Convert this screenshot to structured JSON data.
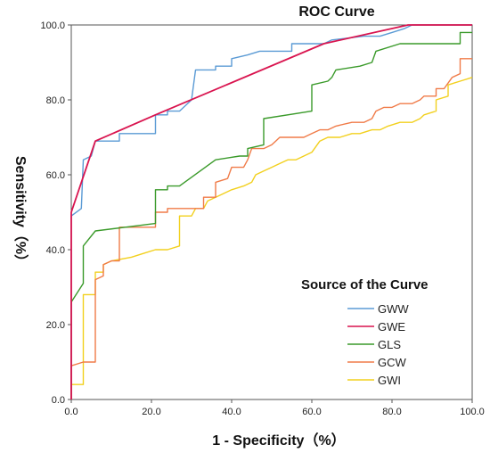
{
  "chart_data": {
    "type": "line",
    "title": "ROC Curve",
    "xlabel": "1 - Specificity（%）",
    "ylabel": "Sensitivity（%）",
    "xlim": [
      0,
      100
    ],
    "ylim": [
      0,
      100
    ],
    "xticks": [
      "0.0",
      "20.0",
      "40.0",
      "60.0",
      "80.0",
      "100.0"
    ],
    "yticks": [
      "0.0",
      "20.0",
      "40.0",
      "60.0",
      "80.0",
      "100.0"
    ],
    "grid": false,
    "legend": {
      "title": "Source of the Curve",
      "position": "bottom-right"
    },
    "series": [
      {
        "name": "GWW",
        "color": "#5b9bd5",
        "points": [
          [
            0,
            0
          ],
          [
            0,
            49
          ],
          [
            2.5,
            51
          ],
          [
            3,
            64
          ],
          [
            5,
            65
          ],
          [
            6,
            69
          ],
          [
            12,
            69
          ],
          [
            12,
            71
          ],
          [
            21,
            71
          ],
          [
            21,
            76
          ],
          [
            24,
            76
          ],
          [
            24,
            77
          ],
          [
            27,
            77
          ],
          [
            30,
            80
          ],
          [
            31,
            88
          ],
          [
            36,
            88
          ],
          [
            36,
            89
          ],
          [
            40,
            89
          ],
          [
            40,
            91
          ],
          [
            44,
            92
          ],
          [
            47,
            93
          ],
          [
            55,
            93
          ],
          [
            55,
            95
          ],
          [
            63,
            95
          ],
          [
            65,
            96
          ],
          [
            73,
            97
          ],
          [
            77,
            97
          ],
          [
            80,
            98
          ],
          [
            83,
            99
          ],
          [
            85,
            100
          ],
          [
            100,
            100
          ]
        ]
      },
      {
        "name": "GWE",
        "color": "#d9144f",
        "points": [
          [
            0,
            0
          ],
          [
            0,
            50
          ],
          [
            6,
            69
          ],
          [
            21,
            76
          ],
          [
            63,
            95
          ],
          [
            84,
            100
          ],
          [
            100,
            100
          ]
        ]
      },
      {
        "name": "GLS",
        "color": "#3a9a2a",
        "points": [
          [
            0,
            0
          ],
          [
            0,
            26
          ],
          [
            3,
            31
          ],
          [
            3,
            41
          ],
          [
            6,
            45
          ],
          [
            21,
            47
          ],
          [
            21,
            56
          ],
          [
            24,
            56
          ],
          [
            24,
            57
          ],
          [
            27,
            57
          ],
          [
            36,
            64
          ],
          [
            42,
            65
          ],
          [
            44,
            65
          ],
          [
            44,
            67
          ],
          [
            48,
            68
          ],
          [
            48,
            75
          ],
          [
            60,
            77
          ],
          [
            60,
            84
          ],
          [
            64,
            85
          ],
          [
            65,
            86
          ],
          [
            66,
            88
          ],
          [
            72,
            89
          ],
          [
            75,
            90
          ],
          [
            76,
            93
          ],
          [
            82,
            95
          ],
          [
            97,
            95
          ],
          [
            97,
            98
          ],
          [
            100,
            98
          ]
        ]
      },
      {
        "name": "GCW",
        "color": "#f07b48",
        "points": [
          [
            0,
            0
          ],
          [
            0,
            9
          ],
          [
            3,
            10
          ],
          [
            6,
            10
          ],
          [
            6,
            32
          ],
          [
            8,
            33
          ],
          [
            8,
            36
          ],
          [
            10,
            37
          ],
          [
            12,
            37
          ],
          [
            12,
            46
          ],
          [
            21,
            46
          ],
          [
            21,
            50
          ],
          [
            24,
            50
          ],
          [
            24,
            51
          ],
          [
            33,
            51
          ],
          [
            33,
            54
          ],
          [
            36,
            54
          ],
          [
            36,
            58
          ],
          [
            39,
            59
          ],
          [
            40,
            62
          ],
          [
            43,
            62
          ],
          [
            44,
            64
          ],
          [
            45,
            67
          ],
          [
            48,
            67
          ],
          [
            50,
            68
          ],
          [
            51,
            69
          ],
          [
            52,
            70
          ],
          [
            58,
            70
          ],
          [
            60,
            71
          ],
          [
            62,
            72
          ],
          [
            64,
            72
          ],
          [
            66,
            73
          ],
          [
            70,
            74
          ],
          [
            73,
            74
          ],
          [
            75,
            75
          ],
          [
            76,
            77
          ],
          [
            78,
            78
          ],
          [
            80,
            78
          ],
          [
            82,
            79
          ],
          [
            85,
            79
          ],
          [
            87,
            80
          ],
          [
            88,
            81
          ],
          [
            91,
            81
          ],
          [
            91,
            83
          ],
          [
            93,
            83
          ],
          [
            95,
            86
          ],
          [
            97,
            87
          ],
          [
            97,
            91
          ],
          [
            100,
            91
          ]
        ]
      },
      {
        "name": "GWI",
        "color": "#f2d01e",
        "points": [
          [
            0,
            0
          ],
          [
            0,
            4
          ],
          [
            3,
            4
          ],
          [
            3,
            28
          ],
          [
            6,
            28
          ],
          [
            6,
            34
          ],
          [
            8,
            34
          ],
          [
            8,
            36
          ],
          [
            10,
            37
          ],
          [
            15,
            38
          ],
          [
            18,
            39
          ],
          [
            21,
            40
          ],
          [
            24,
            40
          ],
          [
            27,
            41
          ],
          [
            27,
            49
          ],
          [
            30,
            49
          ],
          [
            31,
            51
          ],
          [
            33,
            51
          ],
          [
            34,
            53
          ],
          [
            36,
            54
          ],
          [
            38,
            55
          ],
          [
            40,
            56
          ],
          [
            43,
            57
          ],
          [
            45,
            58
          ],
          [
            46,
            60
          ],
          [
            48,
            61
          ],
          [
            50,
            62
          ],
          [
            52,
            63
          ],
          [
            54,
            64
          ],
          [
            56,
            64
          ],
          [
            58,
            65
          ],
          [
            60,
            66
          ],
          [
            62,
            69
          ],
          [
            64,
            70
          ],
          [
            67,
            70
          ],
          [
            70,
            71
          ],
          [
            72,
            71
          ],
          [
            75,
            72
          ],
          [
            77,
            72
          ],
          [
            79,
            73
          ],
          [
            82,
            74
          ],
          [
            85,
            74
          ],
          [
            87,
            75
          ],
          [
            88,
            76
          ],
          [
            91,
            77
          ],
          [
            91,
            80
          ],
          [
            94,
            81
          ],
          [
            94,
            84
          ],
          [
            97,
            85
          ],
          [
            100,
            86
          ]
        ]
      }
    ]
  }
}
